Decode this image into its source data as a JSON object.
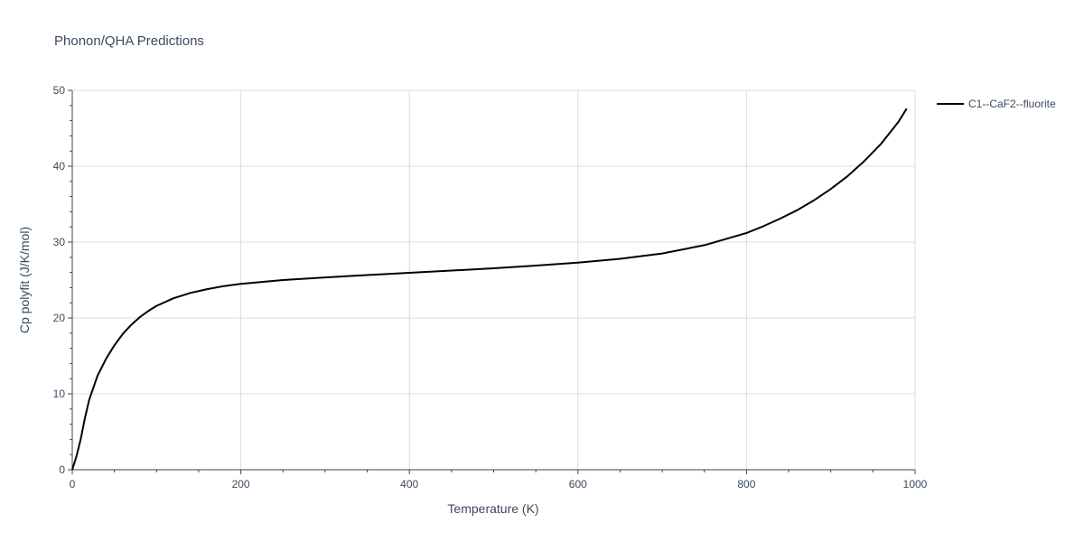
{
  "chart_data": {
    "type": "line",
    "title": "Phonon/QHA Predictions",
    "xlabel": "Temperature (K)",
    "ylabel": "Cp polyfit (J/K/mol)",
    "xlim": [
      0,
      1000
    ],
    "ylim": [
      0,
      50
    ],
    "xticks": [
      0,
      200,
      400,
      600,
      800,
      1000
    ],
    "yticks": [
      0,
      10,
      20,
      30,
      40,
      50
    ],
    "grid": true,
    "legend_position": "top-right outside",
    "series": [
      {
        "name": "C1--CaF2--fluorite",
        "color": "#000000",
        "x": [
          0,
          5,
          10,
          15,
          20,
          30,
          40,
          50,
          60,
          70,
          80,
          90,
          100,
          120,
          140,
          160,
          180,
          200,
          250,
          300,
          350,
          400,
          450,
          500,
          550,
          600,
          650,
          700,
          750,
          800,
          820,
          840,
          860,
          880,
          900,
          920,
          940,
          960,
          980,
          990
        ],
        "y": [
          0,
          1.8,
          4.0,
          6.8,
          9.2,
          12.4,
          14.6,
          16.4,
          17.9,
          19.1,
          20.1,
          20.9,
          21.6,
          22.6,
          23.3,
          23.8,
          24.2,
          24.5,
          25.0,
          25.35,
          25.65,
          25.95,
          26.25,
          26.55,
          26.9,
          27.3,
          27.8,
          28.5,
          29.6,
          31.2,
          32.1,
          33.1,
          34.2,
          35.5,
          37.0,
          38.7,
          40.7,
          43.0,
          45.8,
          47.6
        ]
      }
    ]
  }
}
